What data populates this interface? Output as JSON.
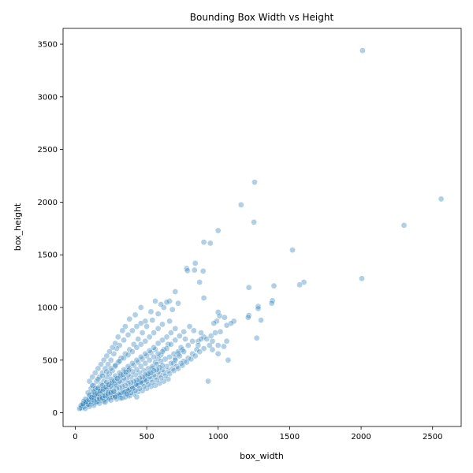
{
  "chart_data": {
    "type": "scatter",
    "title": "Bounding Box Width vs Height",
    "xlabel": "box_width",
    "ylabel": "box_height",
    "xlim": [
      -85,
      2700
    ],
    "ylim": [
      -130,
      3650
    ],
    "xticks": [
      0,
      500,
      1000,
      1500,
      2000,
      2500
    ],
    "yticks": [
      0,
      500,
      1000,
      1500,
      2000,
      2500,
      3000,
      3500
    ],
    "grid": false,
    "marker_color": "#1f77b4",
    "marker_alpha": 0.35,
    "points": [
      [
        2010,
        3440
      ],
      [
        2560,
        2030
      ],
      [
        1255,
        2190
      ],
      [
        1160,
        1975
      ],
      [
        1250,
        1810
      ],
      [
        2300,
        1780
      ],
      [
        1000,
        1730
      ],
      [
        900,
        1620
      ],
      [
        945,
        1610
      ],
      [
        1520,
        1545
      ],
      [
        2005,
        1275
      ],
      [
        1600,
        1240
      ],
      [
        1570,
        1215
      ],
      [
        1390,
        1205
      ],
      [
        1215,
        1190
      ],
      [
        840,
        1420
      ],
      [
        835,
        1355
      ],
      [
        780,
        1370
      ],
      [
        785,
        1350
      ],
      [
        895,
        1345
      ],
      [
        870,
        1240
      ],
      [
        900,
        1090
      ],
      [
        1380,
        1065
      ],
      [
        1375,
        1040
      ],
      [
        1280,
        1010
      ],
      [
        1280,
        990
      ],
      [
        1215,
        925
      ],
      [
        1210,
        905
      ],
      [
        1300,
        880
      ],
      [
        1270,
        710
      ],
      [
        1110,
        870
      ],
      [
        1090,
        850
      ],
      [
        1060,
        830
      ],
      [
        1000,
        955
      ],
      [
        1010,
        920
      ],
      [
        1045,
        905
      ],
      [
        990,
        870
      ],
      [
        970,
        850
      ],
      [
        1015,
        770
      ],
      [
        1060,
        680
      ],
      [
        1040,
        630
      ],
      [
        1070,
        500
      ],
      [
        1000,
        560
      ],
      [
        930,
        300
      ],
      [
        960,
        600
      ],
      [
        940,
        640
      ],
      [
        900,
        720
      ],
      [
        880,
        760
      ],
      [
        860,
        680
      ],
      [
        830,
        780
      ],
      [
        800,
        820
      ],
      [
        770,
        700
      ],
      [
        740,
        620
      ],
      [
        720,
        560
      ],
      [
        700,
        520
      ],
      [
        690,
        470
      ],
      [
        650,
        650
      ],
      [
        620,
        600
      ],
      [
        600,
        550
      ],
      [
        580,
        520
      ],
      [
        560,
        480
      ],
      [
        540,
        420
      ],
      [
        520,
        380
      ],
      [
        500,
        350
      ],
      [
        480,
        320
      ],
      [
        460,
        300
      ],
      [
        440,
        290
      ],
      [
        420,
        270
      ],
      [
        400,
        250
      ],
      [
        380,
        240
      ],
      [
        360,
        220
      ],
      [
        340,
        210
      ],
      [
        320,
        200
      ],
      [
        300,
        180
      ],
      [
        280,
        170
      ],
      [
        260,
        160
      ],
      [
        240,
        150
      ],
      [
        220,
        140
      ],
      [
        200,
        130
      ],
      [
        180,
        120
      ],
      [
        160,
        110
      ],
      [
        140,
        100
      ],
      [
        120,
        90
      ],
      [
        100,
        80
      ],
      [
        80,
        70
      ],
      [
        60,
        60
      ],
      [
        50,
        50
      ],
      [
        40,
        45
      ],
      [
        30,
        40
      ],
      [
        700,
        1150
      ],
      [
        660,
        1060
      ],
      [
        620,
        1000
      ],
      [
        580,
        940
      ],
      [
        540,
        880
      ],
      [
        500,
        820
      ],
      [
        470,
        760
      ],
      [
        440,
        700
      ],
      [
        410,
        650
      ],
      [
        380,
        600
      ],
      [
        350,
        560
      ],
      [
        320,
        520
      ],
      [
        300,
        480
      ],
      [
        280,
        440
      ],
      [
        260,
        400
      ],
      [
        240,
        370
      ],
      [
        220,
        340
      ],
      [
        200,
        300
      ],
      [
        180,
        270
      ],
      [
        160,
        240
      ],
      [
        140,
        210
      ],
      [
        120,
        180
      ],
      [
        100,
        150
      ],
      [
        80,
        120
      ],
      [
        60,
        90
      ],
      [
        50,
        70
      ],
      [
        750,
        600
      ],
      [
        720,
        580
      ],
      [
        690,
        560
      ],
      [
        660,
        530
      ],
      [
        630,
        510
      ],
      [
        600,
        490
      ],
      [
        570,
        460
      ],
      [
        540,
        440
      ],
      [
        510,
        420
      ],
      [
        480,
        400
      ],
      [
        450,
        380
      ],
      [
        420,
        360
      ],
      [
        390,
        340
      ],
      [
        360,
        320
      ],
      [
        330,
        300
      ],
      [
        300,
        280
      ],
      [
        270,
        260
      ],
      [
        240,
        230
      ],
      [
        210,
        210
      ],
      [
        180,
        180
      ],
      [
        150,
        150
      ],
      [
        120,
        130
      ],
      [
        90,
        100
      ],
      [
        720,
        1040
      ],
      [
        680,
        980
      ],
      [
        640,
        1050
      ],
      [
        600,
        1030
      ],
      [
        560,
        1060
      ],
      [
        530,
        960
      ],
      [
        490,
        870
      ],
      [
        460,
        850
      ],
      [
        430,
        820
      ],
      [
        400,
        780
      ],
      [
        370,
        740
      ],
      [
        340,
        690
      ],
      [
        310,
        640
      ],
      [
        290,
        610
      ],
      [
        270,
        560
      ],
      [
        250,
        500
      ],
      [
        230,
        460
      ],
      [
        210,
        420
      ],
      [
        190,
        380
      ],
      [
        170,
        340
      ],
      [
        150,
        300
      ],
      [
        130,
        260
      ],
      [
        110,
        230
      ],
      [
        90,
        190
      ],
      [
        820,
        560
      ],
      [
        790,
        520
      ],
      [
        760,
        490
      ],
      [
        740,
        470
      ],
      [
        710,
        440
      ],
      [
        680,
        420
      ],
      [
        650,
        400
      ],
      [
        620,
        380
      ],
      [
        590,
        360
      ],
      [
        560,
        340
      ],
      [
        530,
        320
      ],
      [
        500,
        300
      ],
      [
        470,
        280
      ],
      [
        440,
        260
      ],
      [
        410,
        240
      ],
      [
        380,
        220
      ],
      [
        350,
        200
      ],
      [
        320,
        180
      ],
      [
        290,
        160
      ],
      [
        260,
        150
      ],
      [
        230,
        130
      ],
      [
        200,
        110
      ],
      [
        430,
        150
      ],
      [
        370,
        170
      ],
      [
        330,
        140
      ],
      [
        290,
        130
      ],
      [
        250,
        120
      ],
      [
        210,
        100
      ],
      [
        170,
        90
      ],
      [
        130,
        70
      ],
      [
        100,
        60
      ],
      [
        70,
        40
      ],
      [
        880,
        700
      ],
      [
        860,
        640
      ],
      [
        850,
        600
      ],
      [
        820,
        680
      ],
      [
        790,
        640
      ],
      [
        760,
        580
      ],
      [
        730,
        540
      ],
      [
        700,
        500
      ],
      [
        670,
        470
      ],
      [
        640,
        440
      ],
      [
        610,
        410
      ],
      [
        580,
        390
      ],
      [
        550,
        360
      ],
      [
        520,
        340
      ],
      [
        490,
        310
      ],
      [
        460,
        290
      ],
      [
        430,
        270
      ],
      [
        400,
        230
      ],
      [
        370,
        210
      ],
      [
        340,
        190
      ],
      [
        310,
        170
      ],
      [
        280,
        150
      ],
      [
        560,
        600
      ],
      [
        530,
        570
      ],
      [
        500,
        540
      ],
      [
        470,
        510
      ],
      [
        440,
        480
      ],
      [
        410,
        450
      ],
      [
        380,
        420
      ],
      [
        350,
        390
      ],
      [
        320,
        360
      ],
      [
        290,
        330
      ],
      [
        260,
        300
      ],
      [
        230,
        270
      ],
      [
        200,
        240
      ],
      [
        170,
        210
      ],
      [
        140,
        180
      ],
      [
        110,
        150
      ],
      [
        80,
        110
      ],
      [
        460,
        1000
      ],
      [
        420,
        930
      ],
      [
        380,
        890
      ],
      [
        350,
        820
      ],
      [
        330,
        780
      ],
      [
        300,
        720
      ],
      [
        280,
        660
      ],
      [
        260,
        620
      ],
      [
        240,
        580
      ],
      [
        220,
        540
      ],
      [
        200,
        500
      ],
      [
        180,
        460
      ],
      [
        160,
        420
      ],
      [
        140,
        380
      ],
      [
        120,
        340
      ],
      [
        100,
        300
      ],
      [
        120,
        260
      ],
      [
        140,
        230
      ],
      [
        650,
        320
      ],
      [
        620,
        300
      ],
      [
        590,
        280
      ],
      [
        560,
        260
      ],
      [
        530,
        250
      ],
      [
        500,
        230
      ],
      [
        470,
        210
      ],
      [
        440,
        200
      ],
      [
        410,
        180
      ],
      [
        380,
        160
      ],
      [
        350,
        150
      ],
      [
        320,
        140
      ],
      [
        660,
        870
      ],
      [
        610,
        840
      ],
      [
        580,
        800
      ],
      [
        550,
        760
      ],
      [
        520,
        720
      ],
      [
        490,
        680
      ],
      [
        460,
        650
      ],
      [
        430,
        620
      ],
      [
        400,
        580
      ],
      [
        370,
        550
      ],
      [
        340,
        520
      ],
      [
        310,
        490
      ],
      [
        280,
        450
      ],
      [
        250,
        420
      ],
      [
        220,
        390
      ],
      [
        190,
        350
      ],
      [
        160,
        320
      ],
      [
        760,
        770
      ],
      [
        730,
        730
      ],
      [
        700,
        690
      ],
      [
        670,
        650
      ],
      [
        640,
        610
      ],
      [
        610,
        580
      ],
      [
        580,
        560
      ],
      [
        550,
        530
      ],
      [
        520,
        500
      ],
      [
        490,
        470
      ],
      [
        460,
        440
      ],
      [
        430,
        410
      ],
      [
        400,
        390
      ],
      [
        370,
        360
      ],
      [
        340,
        330
      ],
      [
        310,
        300
      ],
      [
        280,
        270
      ],
      [
        250,
        250
      ],
      [
        220,
        220
      ],
      [
        190,
        200
      ],
      [
        160,
        170
      ],
      [
        130,
        140
      ],
      [
        980,
        760
      ],
      [
        950,
        730
      ],
      [
        920,
        700
      ],
      [
        960,
        680
      ],
      [
        1000,
        640
      ],
      [
        900,
        610
      ],
      [
        870,
        580
      ],
      [
        840,
        540
      ],
      [
        810,
        510
      ],
      [
        780,
        480
      ],
      [
        750,
        450
      ],
      [
        720,
        420
      ],
      [
        690,
        400
      ],
      [
        660,
        370
      ],
      [
        630,
        350
      ],
      [
        600,
        330
      ],
      [
        570,
        310
      ],
      [
        540,
        290
      ],
      [
        510,
        270
      ],
      [
        480,
        250
      ],
      [
        450,
        230
      ],
      [
        420,
        210
      ],
      [
        390,
        190
      ],
      [
        360,
        180
      ],
      [
        700,
        800
      ],
      [
        670,
        760
      ],
      [
        640,
        720
      ],
      [
        610,
        690
      ],
      [
        580,
        660
      ],
      [
        550,
        620
      ],
      [
        520,
        590
      ],
      [
        490,
        560
      ],
      [
        460,
        530
      ],
      [
        430,
        500
      ],
      [
        400,
        470
      ],
      [
        370,
        440
      ],
      [
        340,
        410
      ],
      [
        310,
        380
      ],
      [
        280,
        350
      ],
      [
        250,
        320
      ],
      [
        220,
        290
      ],
      [
        190,
        260
      ],
      [
        160,
        230
      ],
      [
        130,
        200
      ],
      [
        100,
        170
      ],
      [
        70,
        130
      ],
      [
        610,
        450
      ],
      [
        590,
        430
      ],
      [
        570,
        410
      ],
      [
        550,
        400
      ],
      [
        530,
        380
      ],
      [
        510,
        370
      ],
      [
        490,
        360
      ],
      [
        470,
        340
      ],
      [
        450,
        330
      ],
      [
        430,
        310
      ],
      [
        410,
        300
      ],
      [
        390,
        290
      ],
      [
        370,
        280
      ],
      [
        350,
        260
      ],
      [
        330,
        250
      ],
      [
        310,
        240
      ],
      [
        290,
        230
      ],
      [
        270,
        210
      ],
      [
        250,
        200
      ],
      [
        230,
        190
      ],
      [
        210,
        170
      ],
      [
        190,
        160
      ],
      [
        170,
        150
      ],
      [
        150,
        130
      ],
      [
        60,
        110
      ],
      [
        70,
        90
      ],
      [
        90,
        80
      ],
      [
        110,
        100
      ],
      [
        130,
        120
      ],
      [
        150,
        100
      ],
      [
        170,
        130
      ],
      [
        190,
        140
      ],
      [
        210,
        160
      ],
      [
        230,
        180
      ],
      [
        250,
        190
      ],
      [
        270,
        200
      ],
      [
        40,
        70
      ],
      [
        55,
        85
      ],
      [
        75,
        105
      ],
      [
        95,
        125
      ],
      [
        115,
        145
      ],
      [
        135,
        165
      ],
      [
        155,
        185
      ],
      [
        175,
        205
      ],
      [
        195,
        225
      ],
      [
        215,
        245
      ],
      [
        235,
        265
      ],
      [
        255,
        285
      ],
      [
        275,
        305
      ],
      [
        295,
        325
      ],
      [
        315,
        345
      ],
      [
        335,
        365
      ],
      [
        355,
        385
      ],
      [
        375,
        405
      ]
    ]
  }
}
